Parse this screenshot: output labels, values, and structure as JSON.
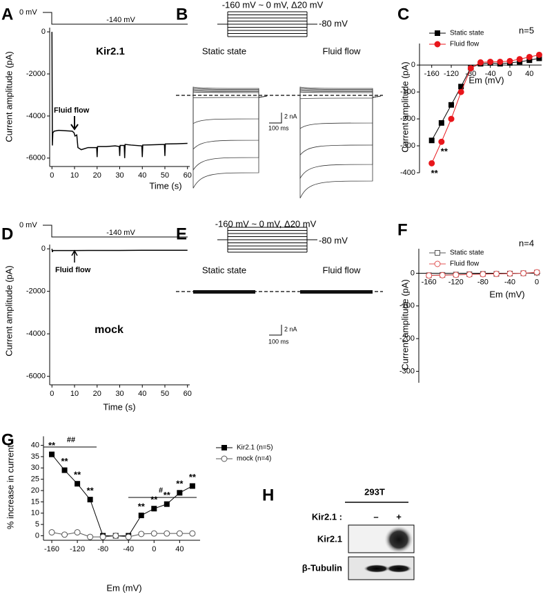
{
  "panel_labels": [
    "A",
    "B",
    "C",
    "D",
    "E",
    "F",
    "G",
    "H"
  ],
  "chart_data": [
    {
      "type": "line",
      "label": "Kir2.1",
      "xlabel": "Time (s)",
      "ylabel": "Current amplitude (pA)",
      "annotations": [
        "0 mV",
        "-140 mV",
        "Fluid flow"
      ],
      "x": [
        0,
        0.2,
        0.4,
        1,
        3,
        6,
        9,
        9.8,
        10.2,
        11,
        11.5,
        13,
        16,
        19.8,
        20,
        20.2,
        24,
        28,
        29.8,
        30,
        30.2,
        32,
        32.2,
        32.4,
        35,
        39.8,
        40,
        40.2,
        44,
        49.8,
        50,
        50.2,
        55,
        60
      ],
      "values": [
        0,
        -5400,
        -4800,
        -4720,
        -4680,
        -4700,
        -4720,
        -4800,
        -4950,
        -4900,
        -5500,
        -5600,
        -5500,
        -5500,
        -5950,
        -5450,
        -5450,
        -5420,
        -5450,
        -5900,
        -5400,
        -5400,
        -6000,
        -5350,
        -5380,
        -5420,
        -5950,
        -5380,
        -5370,
        -5350,
        -5900,
        -5330,
        -5320,
        -5300
      ],
      "color": "#000000",
      "xlim": [
        -1,
        61
      ],
      "ylim": [
        -6400,
        200
      ],
      "xticks": [
        0,
        10,
        20,
        30,
        40,
        50,
        60
      ],
      "yticks": [
        0,
        -2000,
        -4000,
        -6000
      ]
    },
    {
      "type": "line",
      "xlabel": "Em (mV)",
      "ylabel": "Current amplitude (pA)",
      "legend": "upper left",
      "annotations": [
        "n=5"
      ],
      "x": [
        -160,
        -140,
        -120,
        -100,
        -80,
        -60,
        -40,
        -20,
        0,
        20,
        40,
        60
      ],
      "series": [
        {
          "name": "Static state",
          "color": "#000000",
          "marker": "square",
          "filled": true,
          "values": [
            -280,
            -215,
            -148,
            -80,
            -10,
            5,
            8,
            5,
            8,
            12,
            18,
            25
          ]
        },
        {
          "name": "Fluid flow",
          "color": "#e8161b",
          "marker": "circle",
          "filled": true,
          "values": [
            -365,
            -285,
            -200,
            -100,
            -12,
            10,
            12,
            12,
            15,
            22,
            30,
            38
          ],
          "point_labels": [
            "**",
            "**",
            null,
            null,
            null,
            null,
            null,
            null,
            null,
            null,
            null,
            null
          ]
        }
      ],
      "xlim": [
        -185,
        65
      ],
      "ylim": [
        -400,
        80
      ],
      "xticks": [
        -160,
        -120,
        -80,
        -40,
        0,
        40
      ],
      "yticks": [
        0,
        -100,
        -200,
        -300,
        -400
      ]
    },
    {
      "type": "line",
      "label": "mock",
      "xlabel": "Time (s)",
      "ylabel": "Current amplitude (pA)",
      "annotations": [
        "0 mV",
        "-140 mV",
        "Fluid flow"
      ],
      "x": [
        0,
        0.2,
        0.4,
        10,
        20,
        30,
        40,
        50,
        60
      ],
      "values": [
        0,
        -150,
        -80,
        -80,
        -75,
        -75,
        -70,
        -70,
        -70
      ],
      "color": "#000000",
      "xlim": [
        -1,
        61
      ],
      "ylim": [
        -6400,
        200
      ],
      "xticks": [
        0,
        10,
        20,
        30,
        40,
        50,
        60
      ],
      "yticks": [
        0,
        -2000,
        -4000,
        -6000
      ]
    },
    {
      "type": "line",
      "xlabel": "Em (mV)",
      "ylabel": "Current amplitude (pA)",
      "legend": "upper left",
      "annotations": [
        "n=4"
      ],
      "x": [
        -160,
        -140,
        -120,
        -100,
        -80,
        -60,
        -40,
        -20,
        0
      ],
      "series": [
        {
          "name": "Static state",
          "color": "#555555",
          "marker": "square",
          "filled": false,
          "values": [
            -6,
            -5,
            -4,
            -3,
            -2,
            -2,
            -1,
            0,
            2
          ]
        },
        {
          "name": "Fluid flow",
          "color": "#e05050",
          "marker": "circle",
          "filled": false,
          "values": [
            -7,
            -6,
            -5,
            -4,
            -3,
            -2,
            -1,
            0,
            3
          ]
        }
      ],
      "xlim": [
        -175,
        5
      ],
      "ylim": [
        -335,
        75
      ],
      "xticks": [
        -160,
        -120,
        -80,
        -40,
        0
      ],
      "yticks": [
        0,
        -100,
        -200,
        -300
      ]
    },
    {
      "type": "line",
      "xlabel": "Em   (mV)",
      "ylabel": "% increase in current",
      "legend": "upper right",
      "annotations": [
        "##",
        "#"
      ],
      "x": [
        -160,
        -140,
        -120,
        -100,
        -80,
        -60,
        -40,
        -20,
        0,
        20,
        40,
        60
      ],
      "series": [
        {
          "name": "Kir2.1 (n=5)",
          "color": "#000000",
          "marker": "square",
          "filled": true,
          "values": [
            36,
            29,
            23,
            16,
            0,
            0,
            0,
            9,
            12,
            14,
            19,
            22
          ],
          "point_labels": [
            "**",
            "**",
            "**",
            "**",
            null,
            null,
            null,
            "**",
            "**",
            "**",
            "**",
            "**"
          ]
        },
        {
          "name": "mock (n=4)",
          "color": "#555555",
          "marker": "circle",
          "filled": false,
          "values": [
            1.5,
            0.5,
            1.5,
            -0.5,
            -0.5,
            0,
            -0.5,
            0.8,
            1,
            1,
            1,
            1
          ]
        }
      ],
      "xlim": [
        -173,
        72
      ],
      "ylim": [
        -2,
        44
      ],
      "xticks": [
        -160,
        -120,
        -80,
        -40,
        0,
        40
      ],
      "yticks": [
        0,
        5,
        10,
        15,
        20,
        25,
        30,
        35,
        40
      ]
    }
  ],
  "traces": [
    {
      "protocol": "-160  mV ~ 0 mV,   Δ20 mV",
      "holding": "-80 mV",
      "conditions": [
        "Static state",
        "Fluid flow"
      ],
      "scale_current": "2 nA",
      "scale_time": "100 ms"
    },
    {
      "protocol": "-160  mV ~ 0 mV,   Δ20 mV",
      "holding": "-80 mV",
      "conditions": [
        "Static state",
        "Fluid flow"
      ],
      "scale_current": "2 nA",
      "scale_time": "100 ms"
    }
  ],
  "blot": {
    "cell_line": "293T",
    "row_header": "Kir2.1 :",
    "lanes": [
      "–",
      "+"
    ],
    "bands": [
      "Kir2.1",
      "β-Tubulin"
    ]
  }
}
